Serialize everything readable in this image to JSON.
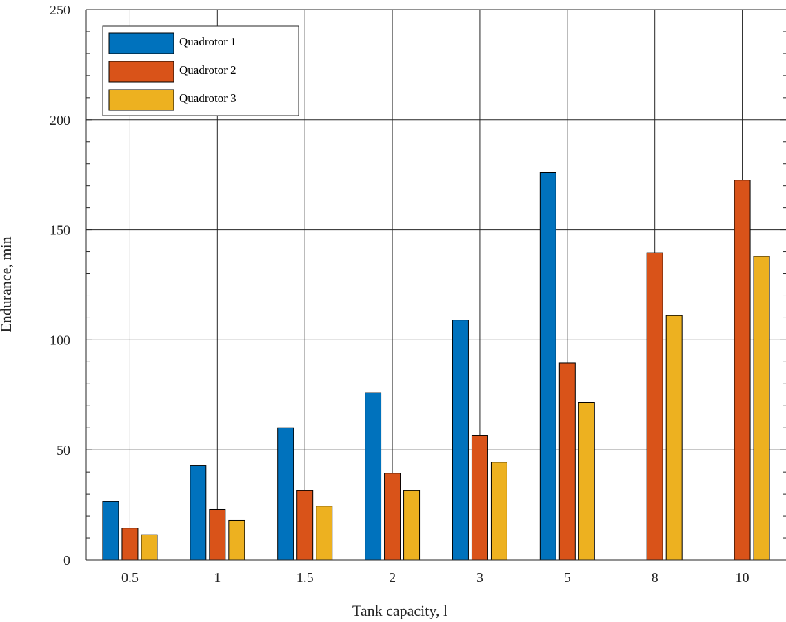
{
  "chart_data": {
    "type": "bar",
    "title": "",
    "xlabel": "Tank capacity, l",
    "ylabel": "Endurance, min",
    "categories": [
      "0.5",
      "1",
      "1.5",
      "2",
      "3",
      "5",
      "8",
      "10"
    ],
    "series": [
      {
        "name": "Quadrotor 1",
        "color": "#0072BD",
        "values": [
          26.5,
          43,
          60,
          76,
          109,
          176,
          0,
          0
        ]
      },
      {
        "name": "Quadrotor 2",
        "color": "#D95319",
        "values": [
          14.5,
          23,
          31.5,
          39.5,
          56.5,
          89.5,
          139.5,
          172.5
        ]
      },
      {
        "name": "Quadrotor 3",
        "color": "#EDB120",
        "values": [
          11.5,
          18,
          24.5,
          31.5,
          44.5,
          71.5,
          111,
          138
        ]
      }
    ],
    "ylim": [
      0,
      250
    ],
    "yticks": [
      0,
      50,
      100,
      150,
      200,
      250
    ],
    "grid": true,
    "legend_position": "top-left"
  }
}
